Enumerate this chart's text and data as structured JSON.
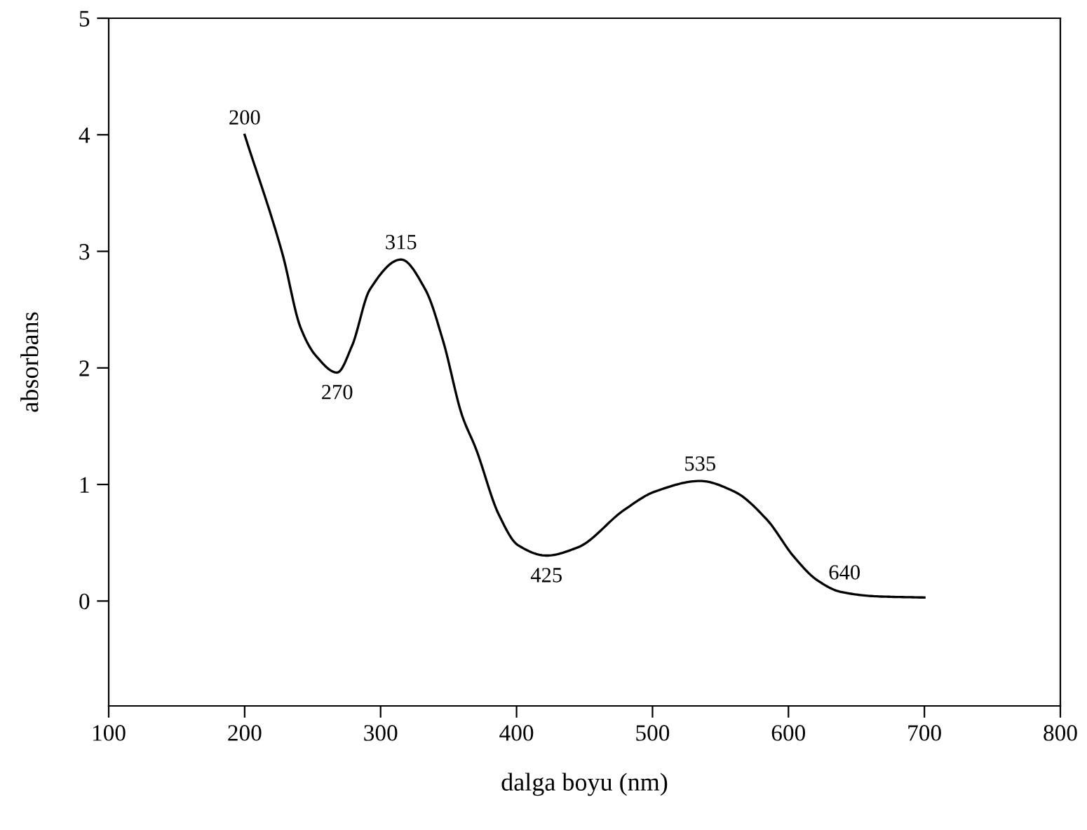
{
  "chart_data": {
    "type": "line",
    "xlabel": "dalga boyu (nm)",
    "ylabel": "absorbans",
    "xlim": [
      100,
      800
    ],
    "ylim": [
      -0.9,
      5
    ],
    "xticks": [
      100,
      200,
      300,
      400,
      500,
      600,
      700,
      800
    ],
    "yticks": [
      0,
      1,
      2,
      3,
      4,
      5
    ],
    "grid": false,
    "legend": false,
    "marker": "none",
    "line_style": "solid",
    "series": [
      {
        "color": "#000000",
        "x": [
          200,
          228,
          241,
          252,
          268,
          279,
          292,
          315,
          333,
          346,
          360,
          370,
          387,
          401,
          422,
          445,
          479,
          502,
          535,
          560,
          584,
          604,
          621,
          638,
          665,
          700
        ],
        "values": [
          4.0,
          2.97,
          2.35,
          2.11,
          1.96,
          2.19,
          2.67,
          2.93,
          2.67,
          2.23,
          1.59,
          1.31,
          0.74,
          0.48,
          0.39,
          0.46,
          0.78,
          0.94,
          1.03,
          0.94,
          0.7,
          0.38,
          0.18,
          0.08,
          0.04,
          0.03
        ]
      }
    ],
    "annotations": [
      {
        "text": "200",
        "x": 200,
        "y": 4.0
      },
      {
        "text": "270",
        "x": 268,
        "y": 1.96
      },
      {
        "text": "315",
        "x": 315,
        "y": 2.93
      },
      {
        "text": "425",
        "x": 422,
        "y": 0.39
      },
      {
        "text": "535",
        "x": 535,
        "y": 1.03
      },
      {
        "text": "640",
        "x": 638,
        "y": 0.08
      }
    ]
  }
}
